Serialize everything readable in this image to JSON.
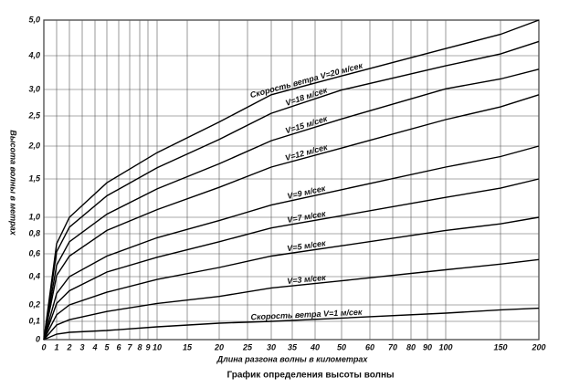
{
  "chart_data": {
    "type": "line",
    "title": "График определения высоты волны",
    "x_label": "Длина разгона волны в километрах",
    "y_label": "Высота волны в метрах",
    "x": [
      0,
      1,
      2,
      5,
      10,
      20,
      30,
      50,
      100,
      150,
      200
    ],
    "series": [
      {
        "name": "Скорость ветра V=20 м/сек",
        "color": "#000000",
        "values": [
          0,
          0.7,
          1.0,
          1.45,
          1.9,
          2.4,
          2.9,
          3.4,
          4.2,
          4.6,
          5.0
        ]
      },
      {
        "name": "V=18 м/сек",
        "color": "#000000",
        "values": [
          0,
          0.62,
          0.88,
          1.28,
          1.67,
          2.11,
          2.55,
          2.99,
          3.7,
          4.05,
          4.4
        ]
      },
      {
        "name": "V=15 м/сек",
        "color": "#000000",
        "values": [
          0,
          0.5,
          0.72,
          1.04,
          1.37,
          1.73,
          2.09,
          2.45,
          3.02,
          3.31,
          3.6
        ]
      },
      {
        "name": "V=12 м/сек",
        "color": "#000000",
        "values": [
          0,
          0.41,
          0.58,
          0.84,
          1.1,
          1.39,
          1.68,
          1.97,
          2.44,
          2.67,
          2.9
        ]
      },
      {
        "name": "V=9 м/сек",
        "color": "#000000",
        "values": [
          0,
          0.28,
          0.4,
          0.58,
          0.76,
          0.96,
          1.16,
          1.36,
          1.68,
          1.84,
          2.0
        ]
      },
      {
        "name": "V=7 м/сек",
        "color": "#000000",
        "values": [
          0,
          0.21,
          0.3,
          0.44,
          0.57,
          0.72,
          0.87,
          1.02,
          1.26,
          1.38,
          1.5
        ]
      },
      {
        "name": "V=5 м/сек",
        "color": "#000000",
        "values": [
          0,
          0.14,
          0.2,
          0.29,
          0.38,
          0.48,
          0.58,
          0.68,
          0.84,
          0.92,
          1.0
        ]
      },
      {
        "name": "V=3 м/сек",
        "color": "#000000",
        "values": [
          0,
          0.08,
          0.11,
          0.16,
          0.21,
          0.26,
          0.32,
          0.37,
          0.46,
          0.51,
          0.55
        ]
      },
      {
        "name": "Скорость ветра V=1 м/сек",
        "color": "#000000",
        "values": [
          0,
          0.03,
          0.04,
          0.05,
          0.07,
          0.09,
          0.1,
          0.12,
          0.15,
          0.17,
          0.18
        ]
      }
    ],
    "xlim": [
      0,
      200
    ],
    "xticks": [
      0,
      1,
      2,
      3,
      4,
      5,
      6,
      7,
      8,
      9,
      10,
      15,
      20,
      25,
      30,
      35,
      40,
      50,
      60,
      70,
      80,
      90,
      100,
      150,
      200
    ],
    "ylim": [
      0,
      5
    ],
    "yticks": [
      0,
      {
        "value": 0.1,
        "label": "0,1"
      },
      {
        "value": 0.2,
        "label": "0,2"
      },
      {
        "value": 0.4,
        "label": "0,4"
      },
      {
        "value": 0.6,
        "label": "0,6"
      },
      {
        "value": 0.8,
        "label": "0,8"
      },
      {
        "value": 1.0,
        "label": "1,0"
      },
      {
        "value": 1.5,
        "label": "1,5"
      },
      {
        "value": 2.0,
        "label": "2,0"
      },
      {
        "value": 2.5,
        "label": "2,5"
      },
      {
        "value": 3.0,
        "label": "3,0"
      },
      {
        "value": 4.0,
        "label": "4,0"
      },
      {
        "value": 5.0,
        "label": "5,0"
      }
    ],
    "grid": true
  }
}
